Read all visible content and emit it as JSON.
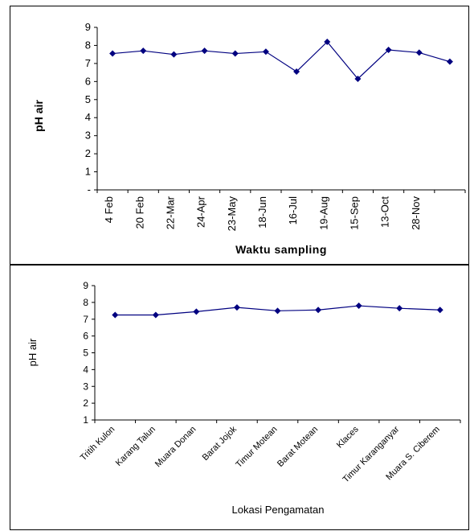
{
  "chart_data": [
    {
      "type": "line",
      "title": "",
      "xlabel": "Waktu sampling",
      "ylabel": "pH air",
      "ylim": [
        0,
        9
      ],
      "yticks": [
        "-",
        "1",
        "2",
        "3",
        "4",
        "5",
        "6",
        "7",
        "8",
        "9"
      ],
      "categories": [
        "4 Feb",
        "20 Feb",
        "22-Mar",
        "24-Apr",
        "23-May",
        "18-Jun",
        "16-Jul",
        "19-Aug",
        "15-Sep",
        "13-Oct",
        "28-Nov",
        ""
      ],
      "series": [
        {
          "values": [
            7.55,
            7.7,
            7.5,
            7.7,
            7.55,
            7.65,
            6.55,
            8.2,
            6.15,
            7.75,
            7.6,
            7.1
          ]
        }
      ],
      "grid": false,
      "legend": "none",
      "color": "#000080",
      "marker": "diamond"
    },
    {
      "type": "line",
      "title": "",
      "xlabel": "Lokasi Pengamatan",
      "ylabel": "pH air",
      "ylim": [
        1,
        9
      ],
      "yticks": [
        "1",
        "2",
        "3",
        "4",
        "5",
        "6",
        "7",
        "8",
        "9"
      ],
      "categories": [
        "Tritih Kulon",
        "Karang Talun",
        "Muara Donan",
        "Barat Jojok",
        "Timur Motean",
        "Barat Motean",
        "Klaces",
        "Timur Karanganyar",
        "Muara S. Ciberem"
      ],
      "series": [
        {
          "values": [
            7.25,
            7.25,
            7.45,
            7.7,
            7.5,
            7.55,
            7.8,
            7.65,
            7.55
          ]
        }
      ],
      "grid": false,
      "legend": "none",
      "color": "#000080",
      "marker": "diamond"
    }
  ]
}
